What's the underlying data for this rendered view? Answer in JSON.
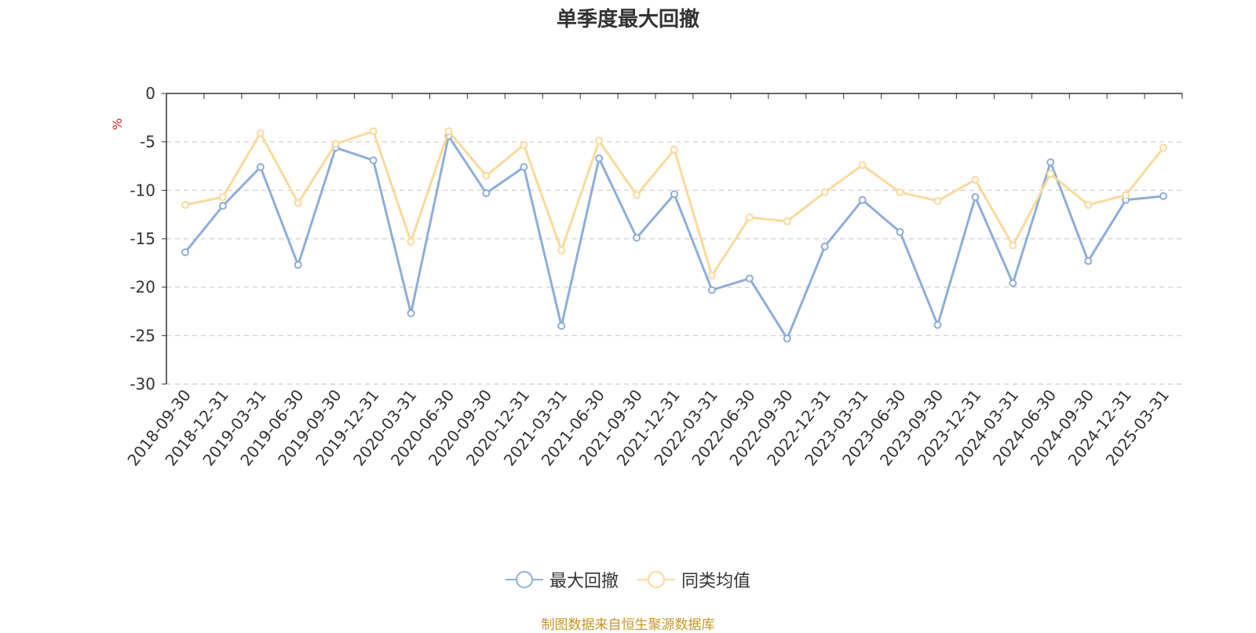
{
  "chart_data": {
    "type": "line",
    "title": "单季度最大回撤",
    "ylabel": "%",
    "ylim": [
      -30,
      0
    ],
    "yticks": [
      "0",
      "-5",
      "-10",
      "-15",
      "-20",
      "-25",
      "-30"
    ],
    "grid": true,
    "legend_position": "bottom-center",
    "categories": [
      "2018-09-30",
      "2018-12-31",
      "2019-03-31",
      "2019-06-30",
      "2019-09-30",
      "2019-12-31",
      "2020-03-31",
      "2020-06-30",
      "2020-09-30",
      "2020-12-31",
      "2021-03-31",
      "2021-06-30",
      "2021-09-30",
      "2021-12-31",
      "2022-03-31",
      "2022-06-30",
      "2022-09-30",
      "2022-12-31",
      "2023-03-31",
      "2023-06-30",
      "2023-09-30",
      "2023-12-31",
      "2024-03-31",
      "2024-06-30",
      "2024-09-30",
      "2024-12-31",
      "2025-03-31"
    ],
    "series": [
      {
        "name": "最大回撤",
        "color": "#8eaed9",
        "values": [
          -16.4,
          -11.6,
          -7.6,
          -17.7,
          -5.6,
          -6.9,
          -22.7,
          -4.4,
          -10.3,
          -7.6,
          -24.0,
          -6.7,
          -14.9,
          -10.4,
          -20.3,
          -19.1,
          -25.3,
          -15.8,
          -11.0,
          -14.3,
          -23.9,
          -10.7,
          -19.6,
          -7.1,
          -17.3,
          -11.0,
          -10.6
        ]
      },
      {
        "name": "同类均值",
        "color": "#fbd99a",
        "values": [
          -11.5,
          -10.7,
          -4.1,
          -11.3,
          -5.2,
          -3.9,
          -15.3,
          -3.9,
          -8.5,
          -5.3,
          -16.2,
          -4.9,
          -10.5,
          -5.8,
          -18.8,
          -12.8,
          -13.2,
          -10.2,
          -7.4,
          -10.2,
          -11.1,
          -8.9,
          -15.7,
          -8.3,
          -11.5,
          -10.5,
          -5.6
        ]
      }
    ]
  },
  "colors": {
    "axis": "#333333",
    "grid": "#cccccc",
    "ylabel": "#e02020",
    "source": "#c8952a"
  },
  "source_note": "制图数据来自恒生聚源数据库"
}
